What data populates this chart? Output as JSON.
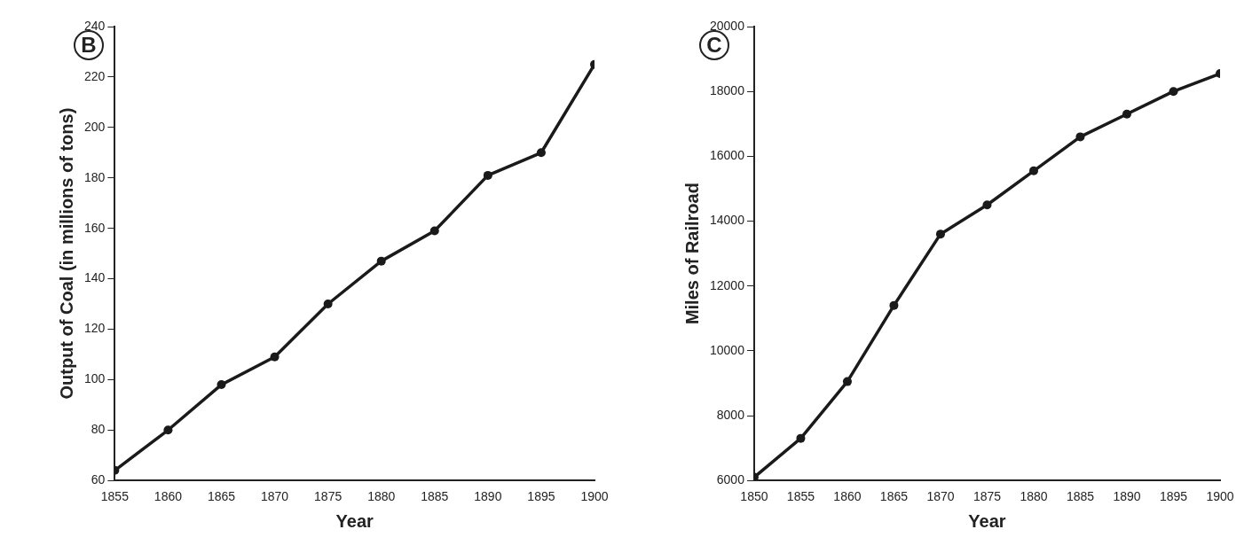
{
  "chart_data": [
    {
      "type": "line",
      "title": "B",
      "xlabel": "Year",
      "ylabel": "Output of Coal (in millions of tons)",
      "x": [
        1855,
        1860,
        1865,
        1870,
        1875,
        1880,
        1885,
        1890,
        1895,
        1900
      ],
      "series": [
        {
          "color": "#1a1a1a",
          "values": [
            64,
            80,
            98,
            109,
            130,
            147,
            159,
            181,
            190,
            225
          ]
        }
      ],
      "xlim": [
        1855,
        1900
      ],
      "xticks": [
        1855,
        1860,
        1865,
        1870,
        1875,
        1880,
        1885,
        1890,
        1895,
        1900
      ],
      "ylim": [
        60,
        240
      ],
      "yticks": [
        60,
        80,
        100,
        120,
        140,
        160,
        180,
        200,
        220,
        240
      ],
      "grid": false,
      "legend": false,
      "marker": "circle",
      "line_style": "solid"
    },
    {
      "type": "line",
      "title": "C",
      "xlabel": "Year",
      "ylabel": "Miles of Railroad",
      "x": [
        1850,
        1855,
        1860,
        1865,
        1870,
        1875,
        1880,
        1885,
        1890,
        1895,
        1900
      ],
      "series": [
        {
          "color": "#1a1a1a",
          "values": [
            6100,
            7300,
            9050,
            11400,
            13600,
            14500,
            15550,
            16600,
            17300,
            18000,
            18550
          ]
        }
      ],
      "xlim": [
        1850,
        1900
      ],
      "xticks": [
        1850,
        1855,
        1860,
        1865,
        1870,
        1875,
        1880,
        1885,
        1890,
        1895,
        1900
      ],
      "ylim": [
        6000,
        20000
      ],
      "yticks": [
        6000,
        8000,
        10000,
        12000,
        14000,
        16000,
        18000,
        20000
      ],
      "grid": false,
      "legend": false,
      "marker": "circle",
      "line_style": "solid"
    }
  ]
}
